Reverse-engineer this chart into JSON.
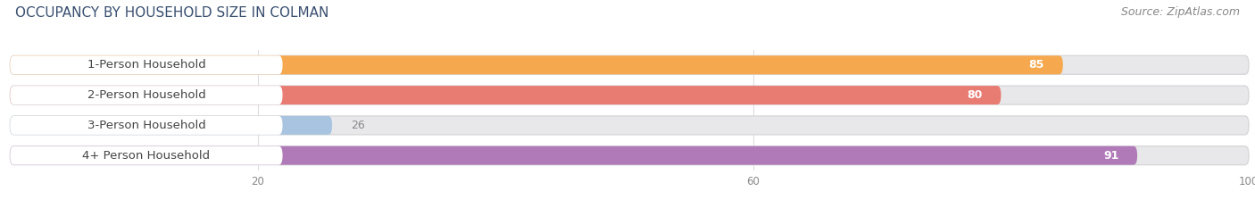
{
  "title": "OCCUPANCY BY HOUSEHOLD SIZE IN COLMAN",
  "source": "Source: ZipAtlas.com",
  "categories": [
    "1-Person Household",
    "2-Person Household",
    "3-Person Household",
    "4+ Person Household"
  ],
  "values": [
    85,
    80,
    26,
    91
  ],
  "bar_colors": [
    "#f5a84e",
    "#e87b72",
    "#a8c4e0",
    "#b07ab8"
  ],
  "track_color": "#e8e8ea",
  "track_border_color": "#d8d8da",
  "white_label_bg": "#ffffff",
  "xlim": [
    0,
    100
  ],
  "xticks": [
    20,
    60,
    100
  ],
  "bar_height": 0.62,
  "label_fontsize": 9.5,
  "value_fontsize": 9,
  "title_fontsize": 11,
  "source_fontsize": 9,
  "label_text_color": "#444444",
  "value_color_inside": "#ffffff",
  "value_color_outside": "#888888",
  "bg_color": "#ffffff"
}
